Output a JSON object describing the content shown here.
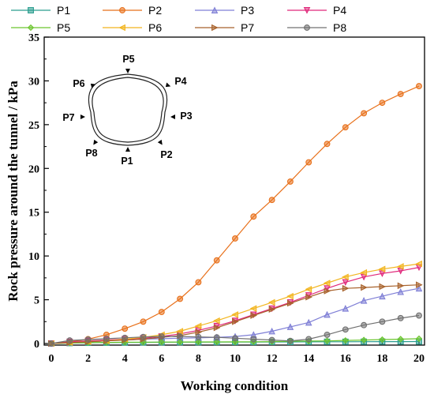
{
  "chart_data": {
    "type": "line",
    "xlabel": "Working condition",
    "ylabel": "Rock pressure around the tunnel / kPa",
    "xlim": [
      0,
      20
    ],
    "ylim": [
      0,
      35
    ],
    "xticks": [
      0,
      2,
      4,
      6,
      8,
      10,
      12,
      14,
      16,
      18,
      20
    ],
    "yticks": [
      0,
      5,
      10,
      15,
      20,
      25,
      30,
      35
    ],
    "grid": false,
    "legend_position": "top",
    "x": [
      0,
      1,
      2,
      3,
      4,
      5,
      6,
      7,
      8,
      9,
      10,
      11,
      12,
      13,
      14,
      15,
      16,
      17,
      18,
      19,
      20
    ],
    "series": [
      {
        "name": "P1",
        "color": "#2a9d8f",
        "marker": "square",
        "values": [
          0.0,
          0.05,
          0.08,
          0.1,
          0.12,
          0.13,
          0.14,
          0.15,
          0.15,
          0.16,
          0.17,
          0.17,
          0.18,
          0.18,
          0.19,
          0.2,
          0.2,
          0.21,
          0.22,
          0.22,
          0.23
        ]
      },
      {
        "name": "P2",
        "color": "#e8701a",
        "marker": "circle",
        "values": [
          0.0,
          0.2,
          0.5,
          1.0,
          1.7,
          2.5,
          3.6,
          5.1,
          7.0,
          9.5,
          12.0,
          14.5,
          16.4,
          18.5,
          20.7,
          22.8,
          24.7,
          26.3,
          27.5,
          28.5,
          29.4
        ]
      },
      {
        "name": "P3",
        "color": "#7f7fd6",
        "marker": "triangle-up",
        "values": [
          0.0,
          0.1,
          0.2,
          0.3,
          0.4,
          0.5,
          0.55,
          0.6,
          0.65,
          0.7,
          0.8,
          1.0,
          1.4,
          1.9,
          2.4,
          3.3,
          4.0,
          4.9,
          5.4,
          5.9,
          6.3
        ]
      },
      {
        "name": "P4",
        "color": "#e0287a",
        "marker": "triangle-down",
        "values": [
          0.0,
          0.2,
          0.3,
          0.4,
          0.5,
          0.6,
          0.8,
          1.1,
          1.5,
          2.0,
          2.6,
          3.3,
          4.0,
          4.7,
          5.5,
          6.3,
          7.0,
          7.6,
          8.0,
          8.3,
          8.7
        ]
      },
      {
        "name": "P5",
        "color": "#6cc52e",
        "marker": "diamond",
        "values": [
          0.0,
          0.05,
          0.1,
          0.12,
          0.14,
          0.15,
          0.16,
          0.17,
          0.18,
          0.18,
          0.19,
          0.2,
          0.22,
          0.25,
          0.28,
          0.3,
          0.35,
          0.4,
          0.45,
          0.5,
          0.55
        ]
      },
      {
        "name": "P6",
        "color": "#f2b51e",
        "marker": "triangle-left",
        "values": [
          0.0,
          0.1,
          0.2,
          0.3,
          0.5,
          0.7,
          1.0,
          1.4,
          2.0,
          2.6,
          3.3,
          4.0,
          4.7,
          5.4,
          6.2,
          6.9,
          7.6,
          8.1,
          8.5,
          8.8,
          9.1
        ]
      },
      {
        "name": "P7",
        "color": "#a8622c",
        "marker": "triangle-right",
        "values": [
          0.0,
          0.1,
          0.2,
          0.3,
          0.4,
          0.5,
          0.7,
          0.9,
          1.3,
          1.8,
          2.5,
          3.2,
          3.9,
          4.6,
          5.3,
          6.0,
          6.3,
          6.4,
          6.5,
          6.6,
          6.7
        ]
      },
      {
        "name": "P8",
        "color": "#707070",
        "marker": "circle",
        "values": [
          0.0,
          0.35,
          0.45,
          0.55,
          0.65,
          0.75,
          0.8,
          0.8,
          0.75,
          0.7,
          0.6,
          0.5,
          0.4,
          0.3,
          0.5,
          1.0,
          1.6,
          2.1,
          2.5,
          2.9,
          3.2
        ]
      }
    ]
  },
  "inset": {
    "labels": {
      "P1": "P1",
      "P2": "P2",
      "P3": "P3",
      "P4": "P4",
      "P5": "P5",
      "P6": "P6",
      "P7": "P7",
      "P8": "P8"
    }
  }
}
